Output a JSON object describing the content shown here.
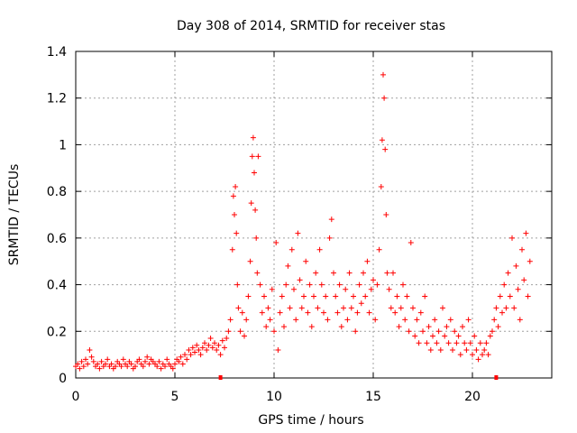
{
  "chart_data": {
    "type": "scatter",
    "title": "Day 308 of 2014, SRMTID for receiver stas",
    "xlabel": "GPS time / hours",
    "ylabel": "SRMTID / TECUs",
    "xlim": [
      0,
      24
    ],
    "ylim": [
      0,
      1.4
    ],
    "xticks": [
      0,
      5,
      10,
      15,
      20
    ],
    "xtick_labels": [
      "0",
      "5",
      "10",
      "15",
      "20"
    ],
    "yticks": [
      0,
      0.2,
      0.4,
      0.6,
      0.8,
      1,
      1.2,
      1.4
    ],
    "ytick_labels": [
      "0",
      "0.2",
      "0.4",
      "0.6",
      "0.8",
      "1",
      "1.2",
      "1.4"
    ],
    "grid": true,
    "marker": "+",
    "color": "#ff0000",
    "baseline_markers_x": [
      7.3,
      21.2
    ],
    "series": [
      {
        "name": "SRMTID",
        "points": [
          [
            0.0,
            0.05
          ],
          [
            0.1,
            0.06
          ],
          [
            0.2,
            0.04
          ],
          [
            0.3,
            0.07
          ],
          [
            0.4,
            0.05
          ],
          [
            0.5,
            0.08
          ],
          [
            0.6,
            0.06
          ],
          [
            0.7,
            0.12
          ],
          [
            0.8,
            0.09
          ],
          [
            0.9,
            0.07
          ],
          [
            1.0,
            0.05
          ],
          [
            1.1,
            0.06
          ],
          [
            1.2,
            0.04
          ],
          [
            1.3,
            0.07
          ],
          [
            1.4,
            0.05
          ],
          [
            1.5,
            0.06
          ],
          [
            1.6,
            0.08
          ],
          [
            1.7,
            0.05
          ],
          [
            1.8,
            0.06
          ],
          [
            1.9,
            0.04
          ],
          [
            2.0,
            0.05
          ],
          [
            2.1,
            0.07
          ],
          [
            2.2,
            0.06
          ],
          [
            2.3,
            0.05
          ],
          [
            2.4,
            0.08
          ],
          [
            2.5,
            0.06
          ],
          [
            2.6,
            0.05
          ],
          [
            2.7,
            0.07
          ],
          [
            2.8,
            0.06
          ],
          [
            2.9,
            0.04
          ],
          [
            3.0,
            0.05
          ],
          [
            3.1,
            0.07
          ],
          [
            3.2,
            0.08
          ],
          [
            3.3,
            0.06
          ],
          [
            3.4,
            0.05
          ],
          [
            3.5,
            0.07
          ],
          [
            3.6,
            0.09
          ],
          [
            3.7,
            0.06
          ],
          [
            3.8,
            0.08
          ],
          [
            3.9,
            0.07
          ],
          [
            4.0,
            0.06
          ],
          [
            4.1,
            0.05
          ],
          [
            4.2,
            0.07
          ],
          [
            4.3,
            0.04
          ],
          [
            4.4,
            0.06
          ],
          [
            4.5,
            0.05
          ],
          [
            4.6,
            0.08
          ],
          [
            4.7,
            0.06
          ],
          [
            4.8,
            0.05
          ],
          [
            4.9,
            0.04
          ],
          [
            5.0,
            0.06
          ],
          [
            5.1,
            0.08
          ],
          [
            5.2,
            0.07
          ],
          [
            5.3,
            0.09
          ],
          [
            5.4,
            0.06
          ],
          [
            5.5,
            0.1
          ],
          [
            5.6,
            0.08
          ],
          [
            5.7,
            0.12
          ],
          [
            5.8,
            0.1
          ],
          [
            5.9,
            0.13
          ],
          [
            6.0,
            0.11
          ],
          [
            6.1,
            0.14
          ],
          [
            6.2,
            0.12
          ],
          [
            6.3,
            0.1
          ],
          [
            6.4,
            0.13
          ],
          [
            6.5,
            0.15
          ],
          [
            6.6,
            0.12
          ],
          [
            6.7,
            0.14
          ],
          [
            6.8,
            0.17
          ],
          [
            6.9,
            0.13
          ],
          [
            7.0,
            0.15
          ],
          [
            7.1,
            0.12
          ],
          [
            7.2,
            0.14
          ],
          [
            7.3,
            0.1
          ],
          [
            7.4,
            0.16
          ],
          [
            7.5,
            0.13
          ],
          [
            7.6,
            0.17
          ],
          [
            7.7,
            0.2
          ],
          [
            7.8,
            0.25
          ],
          [
            7.9,
            0.55
          ],
          [
            7.95,
            0.78
          ],
          [
            8.0,
            0.7
          ],
          [
            8.05,
            0.82
          ],
          [
            8.1,
            0.62
          ],
          [
            8.15,
            0.4
          ],
          [
            8.2,
            0.3
          ],
          [
            8.3,
            0.2
          ],
          [
            8.4,
            0.28
          ],
          [
            8.5,
            0.18
          ],
          [
            8.6,
            0.25
          ],
          [
            8.7,
            0.35
          ],
          [
            8.8,
            0.5
          ],
          [
            8.85,
            0.75
          ],
          [
            8.9,
            0.95
          ],
          [
            8.95,
            1.03
          ],
          [
            9.0,
            0.88
          ],
          [
            9.05,
            0.72
          ],
          [
            9.1,
            0.6
          ],
          [
            9.15,
            0.45
          ],
          [
            9.2,
            0.95
          ],
          [
            9.3,
            0.4
          ],
          [
            9.4,
            0.28
          ],
          [
            9.5,
            0.35
          ],
          [
            9.6,
            0.22
          ],
          [
            9.7,
            0.3
          ],
          [
            9.8,
            0.25
          ],
          [
            9.9,
            0.38
          ],
          [
            10.0,
            0.2
          ],
          [
            10.1,
            0.58
          ],
          [
            10.2,
            0.12
          ],
          [
            10.3,
            0.28
          ],
          [
            10.4,
            0.35
          ],
          [
            10.5,
            0.22
          ],
          [
            10.6,
            0.4
          ],
          [
            10.7,
            0.48
          ],
          [
            10.8,
            0.3
          ],
          [
            10.9,
            0.55
          ],
          [
            11.0,
            0.38
          ],
          [
            11.1,
            0.25
          ],
          [
            11.2,
            0.62
          ],
          [
            11.3,
            0.42
          ],
          [
            11.4,
            0.3
          ],
          [
            11.5,
            0.35
          ],
          [
            11.6,
            0.5
          ],
          [
            11.7,
            0.28
          ],
          [
            11.8,
            0.4
          ],
          [
            11.9,
            0.22
          ],
          [
            12.0,
            0.35
          ],
          [
            12.1,
            0.45
          ],
          [
            12.2,
            0.3
          ],
          [
            12.3,
            0.55
          ],
          [
            12.4,
            0.4
          ],
          [
            12.5,
            0.28
          ],
          [
            12.6,
            0.35
          ],
          [
            12.7,
            0.25
          ],
          [
            12.8,
            0.6
          ],
          [
            12.9,
            0.68
          ],
          [
            13.0,
            0.45
          ],
          [
            13.1,
            0.35
          ],
          [
            13.2,
            0.28
          ],
          [
            13.3,
            0.4
          ],
          [
            13.4,
            0.22
          ],
          [
            13.5,
            0.3
          ],
          [
            13.6,
            0.38
          ],
          [
            13.7,
            0.25
          ],
          [
            13.8,
            0.45
          ],
          [
            13.9,
            0.3
          ],
          [
            14.0,
            0.35
          ],
          [
            14.1,
            0.2
          ],
          [
            14.2,
            0.28
          ],
          [
            14.3,
            0.4
          ],
          [
            14.4,
            0.32
          ],
          [
            14.5,
            0.45
          ],
          [
            14.6,
            0.35
          ],
          [
            14.7,
            0.5
          ],
          [
            14.8,
            0.28
          ],
          [
            14.9,
            0.38
          ],
          [
            15.0,
            0.42
          ],
          [
            15.1,
            0.25
          ],
          [
            15.2,
            0.4
          ],
          [
            15.3,
            0.55
          ],
          [
            15.4,
            0.82
          ],
          [
            15.45,
            1.02
          ],
          [
            15.5,
            1.3
          ],
          [
            15.55,
            1.2
          ],
          [
            15.6,
            0.98
          ],
          [
            15.65,
            0.7
          ],
          [
            15.7,
            0.45
          ],
          [
            15.8,
            0.38
          ],
          [
            15.9,
            0.3
          ],
          [
            16.0,
            0.45
          ],
          [
            16.1,
            0.28
          ],
          [
            16.2,
            0.35
          ],
          [
            16.3,
            0.22
          ],
          [
            16.4,
            0.3
          ],
          [
            16.5,
            0.4
          ],
          [
            16.6,
            0.25
          ],
          [
            16.7,
            0.35
          ],
          [
            16.8,
            0.2
          ],
          [
            16.9,
            0.58
          ],
          [
            17.0,
            0.3
          ],
          [
            17.1,
            0.18
          ],
          [
            17.2,
            0.25
          ],
          [
            17.3,
            0.15
          ],
          [
            17.4,
            0.28
          ],
          [
            17.5,
            0.2
          ],
          [
            17.6,
            0.35
          ],
          [
            17.7,
            0.15
          ],
          [
            17.8,
            0.22
          ],
          [
            17.9,
            0.12
          ],
          [
            18.0,
            0.18
          ],
          [
            18.1,
            0.25
          ],
          [
            18.2,
            0.15
          ],
          [
            18.3,
            0.2
          ],
          [
            18.4,
            0.12
          ],
          [
            18.5,
            0.3
          ],
          [
            18.6,
            0.18
          ],
          [
            18.7,
            0.22
          ],
          [
            18.8,
            0.15
          ],
          [
            18.9,
            0.25
          ],
          [
            19.0,
            0.12
          ],
          [
            19.1,
            0.2
          ],
          [
            19.2,
            0.15
          ],
          [
            19.3,
            0.18
          ],
          [
            19.4,
            0.1
          ],
          [
            19.5,
            0.22
          ],
          [
            19.6,
            0.15
          ],
          [
            19.7,
            0.12
          ],
          [
            19.8,
            0.25
          ],
          [
            19.9,
            0.15
          ],
          [
            20.0,
            0.1
          ],
          [
            20.1,
            0.18
          ],
          [
            20.2,
            0.12
          ],
          [
            20.3,
            0.08
          ],
          [
            20.4,
            0.15
          ],
          [
            20.5,
            0.1
          ],
          [
            20.6,
            0.12
          ],
          [
            20.7,
            0.15
          ],
          [
            20.8,
            0.1
          ],
          [
            20.9,
            0.18
          ],
          [
            21.0,
            0.2
          ],
          [
            21.1,
            0.25
          ],
          [
            21.2,
            0.3
          ],
          [
            21.3,
            0.22
          ],
          [
            21.4,
            0.35
          ],
          [
            21.5,
            0.28
          ],
          [
            21.6,
            0.4
          ],
          [
            21.7,
            0.3
          ],
          [
            21.8,
            0.45
          ],
          [
            21.9,
            0.35
          ],
          [
            22.0,
            0.6
          ],
          [
            22.1,
            0.3
          ],
          [
            22.2,
            0.48
          ],
          [
            22.3,
            0.38
          ],
          [
            22.4,
            0.25
          ],
          [
            22.5,
            0.55
          ],
          [
            22.6,
            0.42
          ],
          [
            22.7,
            0.62
          ],
          [
            22.8,
            0.35
          ],
          [
            22.9,
            0.5
          ]
        ]
      }
    ]
  }
}
